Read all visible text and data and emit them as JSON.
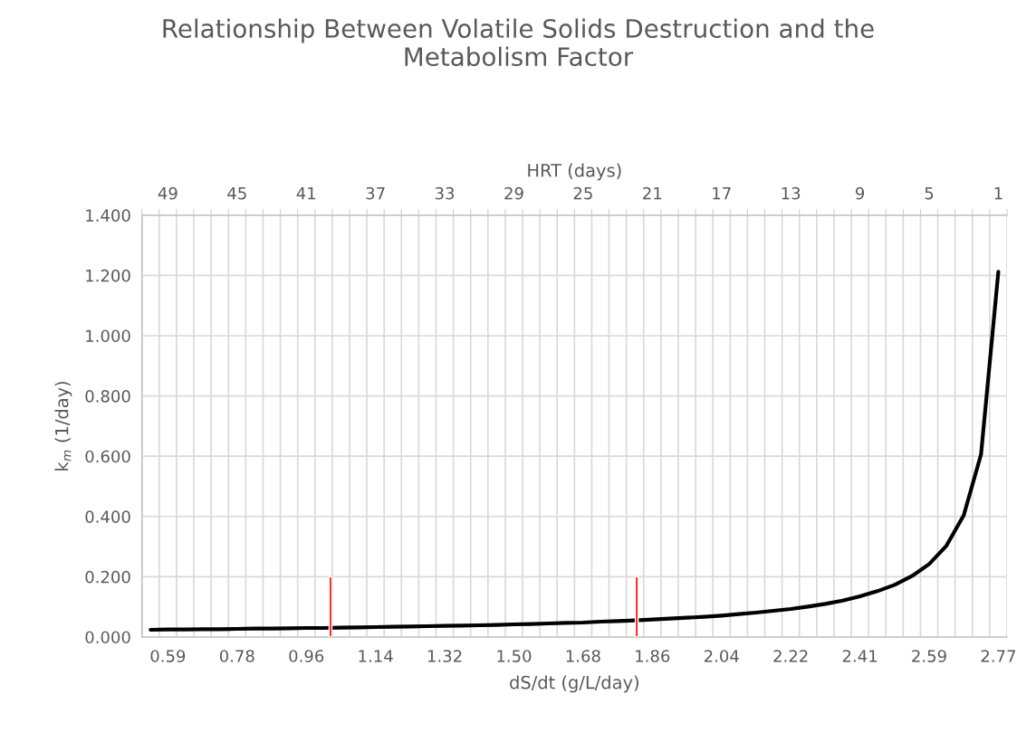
{
  "chart_data": {
    "type": "line",
    "title": "Relationship Between Volatile Solids Destruction and the\nMetabolism Factor",
    "xlabel": "dS/dt (g/L/day)",
    "ylabel": "k$_{m}$ (1/day)",
    "x2label": "HRT (days)",
    "categories": [
      null,
      "0.59",
      null,
      null,
      null,
      "0.78",
      null,
      null,
      null,
      "0.96",
      null,
      null,
      null,
      "1.14",
      null,
      null,
      null,
      "1.32",
      null,
      null,
      null,
      "1.50",
      null,
      null,
      null,
      "1.68",
      null,
      null,
      null,
      "1.86",
      null,
      null,
      null,
      "2.04",
      null,
      null,
      null,
      "2.22",
      null,
      null,
      null,
      "2.41",
      null,
      null,
      null,
      "2.59",
      null,
      null,
      null,
      "2.77"
    ],
    "series": [
      {
        "color": "#000000",
        "values": [
          0.024,
          0.025,
          0.025,
          0.026,
          0.026,
          0.027,
          0.028,
          0.028,
          0.029,
          0.03,
          0.03,
          0.031,
          0.032,
          0.033,
          0.034,
          0.035,
          0.036,
          0.037,
          0.038,
          0.039,
          0.04,
          0.042,
          0.043,
          0.045,
          0.047,
          0.048,
          0.051,
          0.053,
          0.055,
          0.058,
          0.061,
          0.064,
          0.067,
          0.071,
          0.076,
          0.081,
          0.087,
          0.093,
          0.101,
          0.11,
          0.121,
          0.135,
          0.152,
          0.173,
          0.202,
          0.242,
          0.303,
          0.404,
          0.606,
          1.212
        ]
      },
      {
        "type": "bar",
        "color": "#ff0000",
        "axis": "x2",
        "x": [
          39.6
        ],
        "values": [
          0.2
        ]
      },
      {
        "type": "bar",
        "color": "#ff0000",
        "axis": "x2",
        "x": [
          21.9
        ],
        "values": [
          0.2
        ]
      }
    ],
    "x2lim": [
      50.5,
      0.5
    ],
    "x2ticks": [
      49,
      45,
      41,
      37,
      33,
      29,
      25,
      21,
      17,
      13,
      9,
      5,
      1,
      {
        "value": 50.5,
        "label": null
      },
      {
        "value": 49.5,
        "label": null
      },
      {
        "value": 48.5,
        "label": null
      },
      {
        "value": 47.5,
        "label": null
      },
      {
        "value": 46.5,
        "label": null
      },
      {
        "value": 45.5,
        "label": null
      },
      {
        "value": 44.5,
        "label": null
      },
      {
        "value": 43.5,
        "label": null
      },
      {
        "value": 42.5,
        "label": null
      },
      {
        "value": 41.5,
        "label": null
      },
      {
        "value": 40.5,
        "label": null
      },
      {
        "value": 39.5,
        "label": null
      },
      {
        "value": 38.5,
        "label": null
      },
      {
        "value": 37.5,
        "label": null
      },
      {
        "value": 36.5,
        "label": null
      },
      {
        "value": 35.5,
        "label": null
      },
      {
        "value": 34.5,
        "label": null
      },
      {
        "value": 33.5,
        "label": null
      },
      {
        "value": 32.5,
        "label": null
      },
      {
        "value": 31.5,
        "label": null
      },
      {
        "value": 30.5,
        "label": null
      },
      {
        "value": 29.5,
        "label": null
      },
      {
        "value": 28.5,
        "label": null
      },
      {
        "value": 27.5,
        "label": null
      },
      {
        "value": 26.5,
        "label": null
      },
      {
        "value": 25.5,
        "label": null
      },
      {
        "value": 24.5,
        "label": null
      },
      {
        "value": 23.5,
        "label": null
      },
      {
        "value": 22.5,
        "label": null
      },
      {
        "value": 21.5,
        "label": null
      },
      {
        "value": 20.5,
        "label": null
      },
      {
        "value": 19.5,
        "label": null
      },
      {
        "value": 18.5,
        "label": null
      },
      {
        "value": 17.5,
        "label": null
      },
      {
        "value": 16.5,
        "label": null
      },
      {
        "value": 15.5,
        "label": null
      },
      {
        "value": 14.5,
        "label": null
      },
      {
        "value": 13.5,
        "label": null
      },
      {
        "value": 12.5,
        "label": null
      },
      {
        "value": 11.5,
        "label": null
      },
      {
        "value": 10.5,
        "label": null
      },
      {
        "value": 9.5,
        "label": null
      },
      {
        "value": 8.5,
        "label": null
      },
      {
        "value": 7.5,
        "label": null
      },
      {
        "value": 6.5,
        "label": null
      },
      {
        "value": 5.5,
        "label": null
      },
      {
        "value": 4.5,
        "label": null
      },
      {
        "value": 3.5,
        "label": null
      },
      {
        "value": 2.5,
        "label": null
      },
      {
        "value": 1.5,
        "label": null
      },
      {
        "value": 0.5,
        "label": null
      }
    ],
    "ylim": [
      0,
      1.4
    ],
    "yticks": [
      {
        "value": 0,
        "label": "0.000"
      },
      {
        "value": 0.2,
        "label": "0.200"
      },
      {
        "value": 0.4,
        "label": "0.400"
      },
      {
        "value": 0.6,
        "label": "0.600"
      },
      {
        "value": 0.8,
        "label": "0.800"
      },
      {
        "value": 1.0,
        "label": "1.000"
      },
      {
        "value": 1.2,
        "label": "1.200"
      },
      {
        "value": 1.4,
        "label": "1.400"
      }
    ],
    "grid": true,
    "marker": "none",
    "line_style": "solid",
    "legend": false
  }
}
